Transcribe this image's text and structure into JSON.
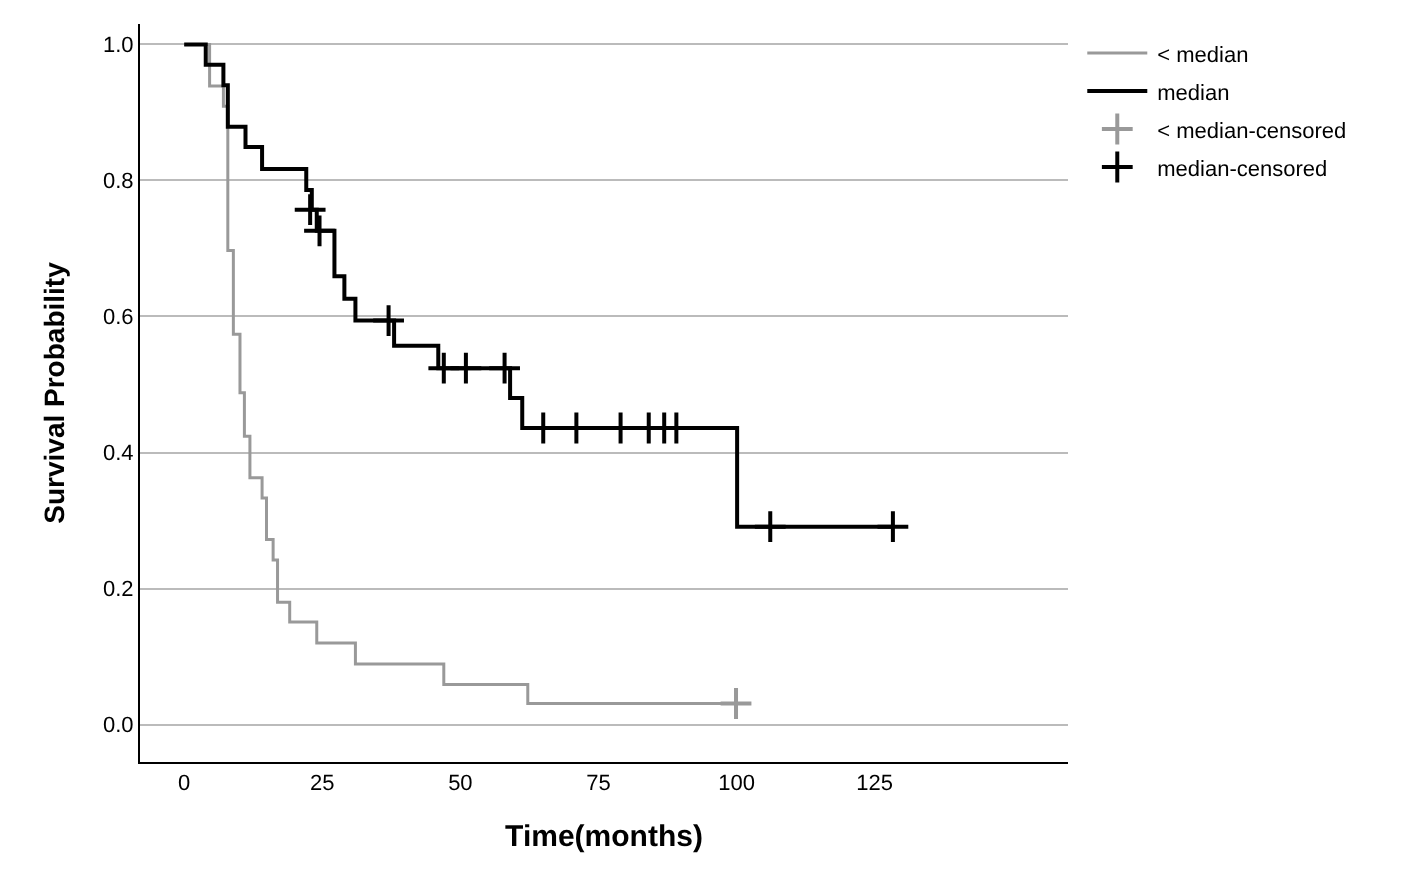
{
  "chart_data": {
    "type": "step",
    "xlabel": "Time(months)",
    "ylabel": "Survival Probability",
    "xlim": [
      -8,
      160
    ],
    "xticks": [
      0,
      25,
      50,
      75,
      100,
      125
    ],
    "ylim": [
      -0.055,
      1.03
    ],
    "yticks": [
      {
        "value": 0,
        "label": "0.0"
      },
      {
        "value": 0.2,
        "label": "0.2"
      },
      {
        "value": 0.4,
        "label": "0.4"
      },
      {
        "value": 0.6,
        "label": "0.6"
      },
      {
        "value": 0.8,
        "label": "0.8"
      },
      {
        "value": 1,
        "label": "1.0"
      }
    ],
    "grid": "y",
    "legend": "right",
    "series": [
      {
        "name": "< median",
        "color": "#999999",
        "x": [
          0,
          4.6,
          7.1,
          7.9,
          8.9,
          10.1,
          10.9,
          11.9,
          14.1,
          14.9,
          16.1,
          16.9,
          19.1,
          24.0,
          31.0,
          47.0,
          62.2,
          99.9
        ],
        "values": [
          1.0,
          0.939,
          0.909,
          0.697,
          0.574,
          0.488,
          0.424,
          0.363,
          0.333,
          0.272,
          0.242,
          0.18,
          0.151,
          0.12,
          0.089,
          0.059,
          0.031,
          0.031
        ]
      },
      {
        "name": "median",
        "color": "#000000",
        "x": [
          0,
          3.9,
          7.1,
          7.9,
          11.1,
          14.1,
          22.1,
          23.1,
          24.0,
          27.2,
          29.0,
          31.0,
          38.0,
          46.0,
          59.0,
          61.2,
          100.1,
          128.3
        ],
        "values": [
          1.0,
          0.97,
          0.94,
          0.879,
          0.849,
          0.817,
          0.786,
          0.757,
          0.726,
          0.659,
          0.626,
          0.594,
          0.557,
          0.524,
          0.48,
          0.436,
          0.291,
          0.291
        ]
      },
      {
        "name": "< median-censored",
        "type": "scatter",
        "marker": "cross",
        "color": "#999999",
        "x": [
          99.9
        ],
        "values": [
          0.031
        ]
      },
      {
        "name": "median-censored",
        "type": "scatter",
        "marker": "cross",
        "color": "#000000",
        "x": [
          22.8,
          24.5,
          37.0,
          47.0,
          51.0,
          58.0,
          65.0,
          71.0,
          79.0,
          84.1,
          86.9,
          89.1,
          106.1,
          128.3
        ],
        "values": [
          0.757,
          0.726,
          0.594,
          0.524,
          0.524,
          0.524,
          0.436,
          0.436,
          0.436,
          0.436,
          0.436,
          0.436,
          0.291,
          0.291
        ]
      }
    ]
  }
}
